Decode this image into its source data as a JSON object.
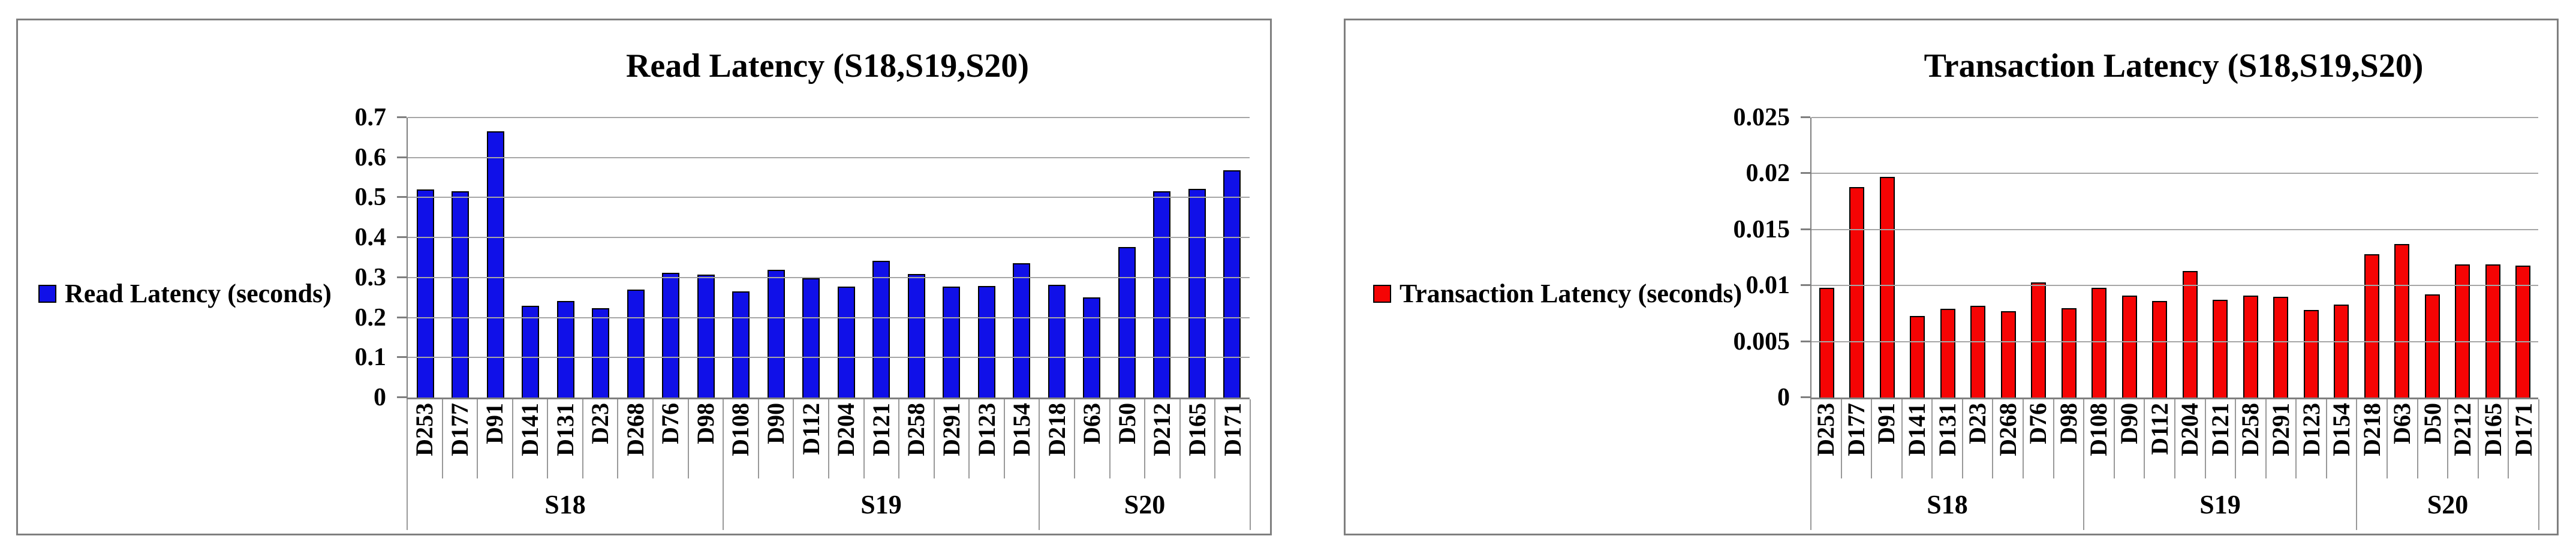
{
  "page": {
    "background": "#ffffff"
  },
  "chart_data": [
    {
      "type": "bar",
      "title": "Read Latency (S18,S19,S20)",
      "legend": [
        "Read Latency (seconds)"
      ],
      "legend_position": "left",
      "bar_color": "#1010e8",
      "grid": true,
      "ylim": [
        0,
        0.7
      ],
      "ytick_labels": [
        "0.7",
        "0.6",
        "0.5",
        "0.4",
        "0.3",
        "0.2",
        "0.1",
        "0"
      ],
      "xlabel": "",
      "ylabel": "",
      "group_labels": [
        "S18",
        "S19",
        "S20"
      ],
      "group_sizes": [
        9,
        9,
        6
      ],
      "categories": [
        "D253",
        "D177",
        "D91",
        "D141",
        "D131",
        "D23",
        "D268",
        "D76",
        "D98",
        "D108",
        "D90",
        "D112",
        "D204",
        "D121",
        "D258",
        "D291",
        "D123",
        "D154",
        "D218",
        "D63",
        "D50",
        "D212",
        "D165",
        "D171"
      ],
      "values": [
        0.52,
        0.515,
        0.665,
        0.23,
        0.242,
        0.224,
        0.27,
        0.312,
        0.307,
        0.265,
        0.32,
        0.298,
        0.277,
        0.342,
        0.309,
        0.277,
        0.279,
        0.336,
        0.282,
        0.251,
        0.377,
        0.515,
        0.522,
        0.568
      ]
    },
    {
      "type": "bar",
      "title": "Transaction Latency (S18,S19,S20)",
      "legend": [
        "Transaction Latency (seconds)"
      ],
      "legend_position": "left",
      "bar_color": "#f50404",
      "grid": true,
      "ylim": [
        0,
        0.025
      ],
      "ytick_labels": [
        "0.025",
        "0.02",
        "0.015",
        "0.01",
        "0.005",
        "0"
      ],
      "xlabel": "",
      "ylabel": "",
      "group_labels": [
        "S18",
        "S19",
        "S20"
      ],
      "group_sizes": [
        9,
        9,
        6
      ],
      "categories": [
        "D253",
        "D177",
        "D91",
        "D141",
        "D131",
        "D23",
        "D268",
        "D76",
        "D98",
        "D108",
        "D90",
        "D112",
        "D204",
        "D121",
        "D258",
        "D291",
        "D123",
        "D154",
        "D218",
        "D63",
        "D50",
        "D212",
        "D165",
        "D171"
      ],
      "values": [
        0.0098,
        0.0188,
        0.0197,
        0.0073,
        0.0079,
        0.0082,
        0.0077,
        0.0103,
        0.008,
        0.0098,
        0.0091,
        0.0086,
        0.0113,
        0.0087,
        0.0091,
        0.009,
        0.0078,
        0.0083,
        0.0128,
        0.0137,
        0.0092,
        0.0119,
        0.0119,
        0.0118
      ]
    }
  ]
}
